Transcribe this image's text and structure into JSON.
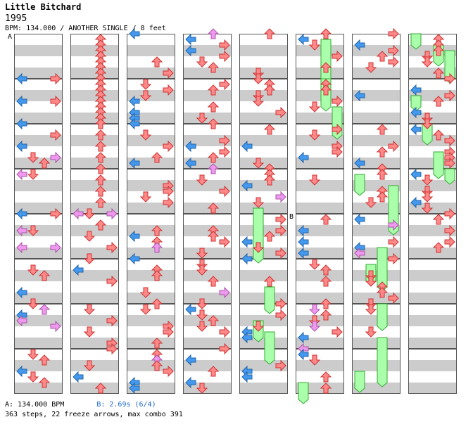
{
  "title": "Little Bitchard",
  "artist": "1995",
  "info": "BPM: 134.000 / ANOTHER SINGLE / 8 feet",
  "markers": [
    {
      "label": "A",
      "column": 0,
      "measure": 0
    },
    {
      "label": "B",
      "column": 5,
      "measure": 4
    }
  ],
  "footer": {
    "bpm_a": "A: 134.000 BPM",
    "bpm_b": "B: 2.69s (6/4)",
    "stats": "363 steps, 22 freeze arrows, max combo 391"
  },
  "colors": {
    "left": "#4499ee",
    "down": "#ff8888",
    "up": "#ff8888",
    "right": "#ff8888",
    "accent": "#ee99ee",
    "freeze": "#aaffaa",
    "stripe": "#cccccc"
  },
  "chart_data": {
    "type": "step-chart",
    "columns": 8,
    "measures_per_column": 8,
    "lanes": [
      "left",
      "down",
      "up",
      "right"
    ],
    "notes": [
      {
        "c": 0,
        "m": 1,
        "r": 0,
        "l": 0
      },
      {
        "c": 0,
        "m": 1,
        "r": 0,
        "l": 3
      },
      {
        "c": 0,
        "m": 1,
        "r": 8,
        "l": 0
      },
      {
        "c": 0,
        "m": 1,
        "r": 8,
        "l": 3
      },
      {
        "c": 0,
        "m": 2,
        "r": 0,
        "l": 0
      },
      {
        "c": 0,
        "m": 2,
        "r": 4,
        "l": 3
      },
      {
        "c": 0,
        "m": 2,
        "r": 8,
        "l": 0
      },
      {
        "c": 0,
        "m": 2,
        "r": 12,
        "l": 1
      },
      {
        "c": 0,
        "m": 2,
        "r": 12,
        "l": 3,
        "a": 1
      },
      {
        "c": 0,
        "m": 2,
        "r": 14,
        "l": 2
      },
      {
        "c": 0,
        "m": 3,
        "r": 2,
        "l": 0,
        "a": 1
      },
      {
        "c": 0,
        "m": 3,
        "r": 2,
        "l": 1
      },
      {
        "c": 0,
        "m": 4,
        "r": 0,
        "l": 0
      },
      {
        "c": 0,
        "m": 4,
        "r": 0,
        "l": 3
      },
      {
        "c": 0,
        "m": 4,
        "r": 6,
        "l": 0,
        "a": 1
      },
      {
        "c": 0,
        "m": 4,
        "r": 6,
        "l": 1
      },
      {
        "c": 0,
        "m": 4,
        "r": 12,
        "l": 0,
        "a": 1
      },
      {
        "c": 0,
        "m": 4,
        "r": 12,
        "l": 3,
        "a": 1
      },
      {
        "c": 0,
        "m": 5,
        "r": 4,
        "l": 1
      },
      {
        "c": 0,
        "m": 5,
        "r": 6,
        "l": 2
      },
      {
        "c": 0,
        "m": 5,
        "r": 12,
        "l": 0
      },
      {
        "c": 0,
        "m": 6,
        "r": 0,
        "l": 1
      },
      {
        "c": 0,
        "m": 6,
        "r": 2,
        "l": 2,
        "a": 1
      },
      {
        "c": 0,
        "m": 6,
        "r": 4,
        "l": 0
      },
      {
        "c": 0,
        "m": 6,
        "r": 6,
        "l": 0,
        "a": 1
      },
      {
        "c": 0,
        "m": 6,
        "r": 8,
        "l": 3,
        "a": 1
      },
      {
        "c": 0,
        "m": 7,
        "r": 2,
        "l": 1
      },
      {
        "c": 0,
        "m": 7,
        "r": 4,
        "l": 2
      },
      {
        "c": 0,
        "m": 7,
        "r": 8,
        "l": 0
      },
      {
        "c": 0,
        "m": 7,
        "r": 10,
        "l": 1
      },
      {
        "c": 0,
        "m": 7,
        "r": 12,
        "l": 2
      },
      {
        "c": 1,
        "m": 0,
        "r": 2,
        "l": 2
      },
      {
        "c": 1,
        "m": 0,
        "r": 4,
        "l": 2
      },
      {
        "c": 1,
        "m": 0,
        "r": 6,
        "l": 2
      },
      {
        "c": 1,
        "m": 0,
        "r": 8,
        "l": 2
      },
      {
        "c": 1,
        "m": 0,
        "r": 10,
        "l": 2
      },
      {
        "c": 1,
        "m": 0,
        "r": 12,
        "l": 2
      },
      {
        "c": 1,
        "m": 0,
        "r": 14,
        "l": 2
      },
      {
        "c": 1,
        "m": 1,
        "r": 0,
        "l": 2
      },
      {
        "c": 1,
        "m": 1,
        "r": 2,
        "l": 2
      },
      {
        "c": 1,
        "m": 1,
        "r": 4,
        "l": 2
      },
      {
        "c": 1,
        "m": 1,
        "r": 6,
        "l": 2
      },
      {
        "c": 1,
        "m": 1,
        "r": 8,
        "l": 2
      },
      {
        "c": 1,
        "m": 1,
        "r": 10,
        "l": 2
      },
      {
        "c": 1,
        "m": 1,
        "r": 12,
        "l": 2
      },
      {
        "c": 1,
        "m": 1,
        "r": 14,
        "l": 2
      },
      {
        "c": 1,
        "m": 2,
        "r": 0,
        "l": 2
      },
      {
        "c": 1,
        "m": 2,
        "r": 4,
        "l": 2
      },
      {
        "c": 1,
        "m": 2,
        "r": 8,
        "l": 2
      },
      {
        "c": 1,
        "m": 2,
        "r": 12,
        "l": 2
      },
      {
        "c": 1,
        "m": 3,
        "r": 0,
        "l": 2
      },
      {
        "c": 1,
        "m": 3,
        "r": 4,
        "l": 2
      },
      {
        "c": 1,
        "m": 3,
        "r": 8,
        "l": 2
      },
      {
        "c": 1,
        "m": 3,
        "r": 12,
        "l": 2
      },
      {
        "c": 1,
        "m": 4,
        "r": 0,
        "l": 0,
        "a": 1
      },
      {
        "c": 1,
        "m": 4,
        "r": 0,
        "l": 1
      },
      {
        "c": 1,
        "m": 4,
        "r": 0,
        "l": 3,
        "a": 1
      },
      {
        "c": 1,
        "m": 4,
        "r": 4,
        "l": 2
      },
      {
        "c": 1,
        "m": 4,
        "r": 8,
        "l": 1
      },
      {
        "c": 1,
        "m": 4,
        "r": 12,
        "l": 3
      },
      {
        "c": 1,
        "m": 5,
        "r": 0,
        "l": 1
      },
      {
        "c": 1,
        "m": 5,
        "r": 4,
        "l": 0
      },
      {
        "c": 1,
        "m": 5,
        "r": 8,
        "l": 3
      },
      {
        "c": 1,
        "m": 6,
        "r": 2,
        "l": 1
      },
      {
        "c": 1,
        "m": 6,
        "r": 6,
        "l": 3
      },
      {
        "c": 1,
        "m": 6,
        "r": 10,
        "l": 1
      },
      {
        "c": 1,
        "m": 6,
        "r": 14,
        "l": 3
      },
      {
        "c": 1,
        "m": 7,
        "r": 0,
        "l": 3
      },
      {
        "c": 1,
        "m": 7,
        "r": 6,
        "l": 1
      },
      {
        "c": 1,
        "m": 7,
        "r": 10,
        "l": 0
      },
      {
        "c": 1,
        "m": 7,
        "r": 14,
        "l": 2
      }
    ],
    "freezes": [
      {
        "c": 4,
        "m": 3,
        "r": 14,
        "l": 1,
        "len": 18
      },
      {
        "c": 4,
        "m": 5,
        "r": 10,
        "l": 2,
        "len": 8
      },
      {
        "c": 4,
        "m": 6,
        "r": 6,
        "l": 1,
        "len": 6
      },
      {
        "c": 4,
        "m": 6,
        "r": 10,
        "l": 2,
        "len": 10
      },
      {
        "c": 5,
        "m": 0,
        "r": 2,
        "l": 2,
        "len": 14
      },
      {
        "c": 5,
        "m": 1,
        "r": 0,
        "l": 2,
        "len": 10
      },
      {
        "c": 5,
        "m": 1,
        "r": 10,
        "l": 3,
        "len": 10
      },
      {
        "c": 6,
        "m": 3,
        "r": 2,
        "l": 0,
        "len": 6
      },
      {
        "c": 6,
        "m": 3,
        "r": 6,
        "l": 3,
        "len": 16
      },
      {
        "c": 6,
        "m": 4,
        "r": 12,
        "l": 2,
        "len": 14
      },
      {
        "c": 6,
        "m": 5,
        "r": 2,
        "l": 1,
        "len": 6
      },
      {
        "c": 6,
        "m": 6,
        "r": 0,
        "l": 2,
        "len": 8
      },
      {
        "c": 6,
        "m": 6,
        "r": 12,
        "l": 2,
        "len": 16
      },
      {
        "c": 6,
        "m": 7,
        "r": 8,
        "l": 0,
        "len": 6
      },
      {
        "c": 7,
        "m": 0,
        "r": 0,
        "l": 0,
        "len": 4
      },
      {
        "c": 7,
        "m": 0,
        "r": 4,
        "l": 2,
        "len": 6
      },
      {
        "c": 7,
        "m": 0,
        "r": 6,
        "l": 3,
        "len": 10
      },
      {
        "c": 7,
        "m": 2,
        "r": 0,
        "l": 1,
        "len": 6
      },
      {
        "c": 7,
        "m": 2,
        "r": 10,
        "l": 2,
        "len": 8
      },
      {
        "c": 7,
        "m": 1,
        "r": 6,
        "l": 0,
        "len": 4
      },
      {
        "c": 7,
        "m": 3,
        "r": 0,
        "l": 3,
        "len": 4
      },
      {
        "c": 5,
        "m": 7,
        "r": 12,
        "l": 0,
        "len": 6
      }
    ],
    "fill_seed": 1995
  }
}
